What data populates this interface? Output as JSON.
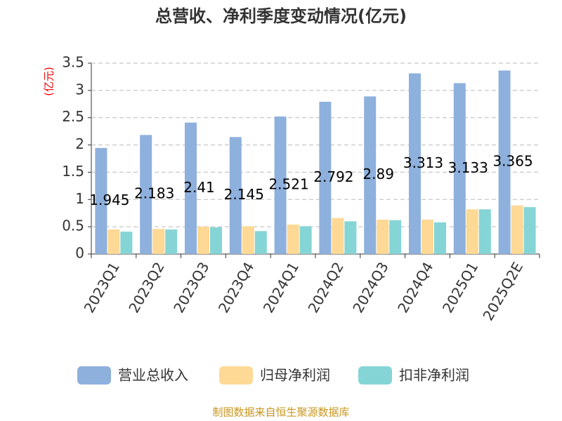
{
  "chart_data": {
    "type": "bar",
    "title": "总营收、净利季度变动情况(亿元)",
    "y_label": "(亿元)",
    "source": "制图数据来自恒生聚源数据库",
    "categories": [
      "2023Q1",
      "2023Q2",
      "2023Q3",
      "2023Q4",
      "2024Q1",
      "2024Q2",
      "2024Q3",
      "2024Q4",
      "2025Q1",
      "2025Q2E"
    ],
    "series": [
      {
        "name": "营业总收入",
        "color": "#8eb0dd",
        "values": [
          1.945,
          2.183,
          2.41,
          2.145,
          2.521,
          2.792,
          2.89,
          3.313,
          3.133,
          3.365
        ],
        "show_labels": true
      },
      {
        "name": "归母净利润",
        "color": "#fdd995",
        "values": [
          0.45,
          0.46,
          0.5,
          0.51,
          0.54,
          0.66,
          0.63,
          0.63,
          0.82,
          0.89
        ]
      },
      {
        "name": "扣非净利润",
        "color": "#86d5d6",
        "values": [
          0.41,
          0.45,
          0.49,
          0.42,
          0.51,
          0.6,
          0.62,
          0.58,
          0.82,
          0.86
        ]
      }
    ],
    "ylim": [
      0,
      3.5
    ],
    "yticks": [
      0,
      0.5,
      1,
      1.5,
      2,
      2.5,
      3,
      3.5
    ],
    "grid": true
  }
}
